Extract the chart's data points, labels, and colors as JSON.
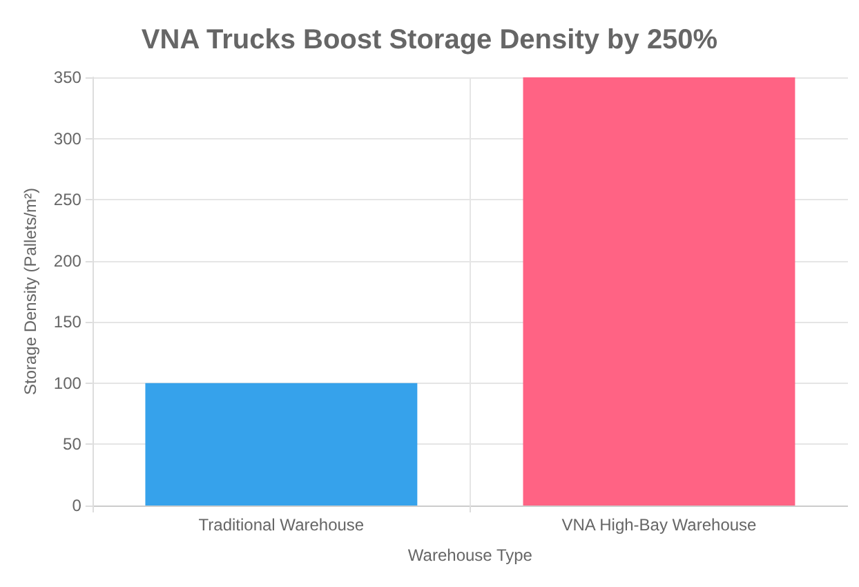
{
  "chart_data": {
    "type": "bar",
    "title": "VNA Trucks Boost Storage Density by 250%",
    "xlabel": "Warehouse Type",
    "ylabel": "Storage Density (Pallets/m²)",
    "categories": [
      "Traditional Warehouse",
      "VNA High-Bay Warehouse"
    ],
    "values": [
      100,
      350
    ],
    "colors": [
      "#36a2eb",
      "#ff6384"
    ],
    "ylim": [
      0,
      350
    ],
    "yticks": [
      0,
      50,
      100,
      150,
      200,
      250,
      300,
      350
    ],
    "grid": true
  }
}
